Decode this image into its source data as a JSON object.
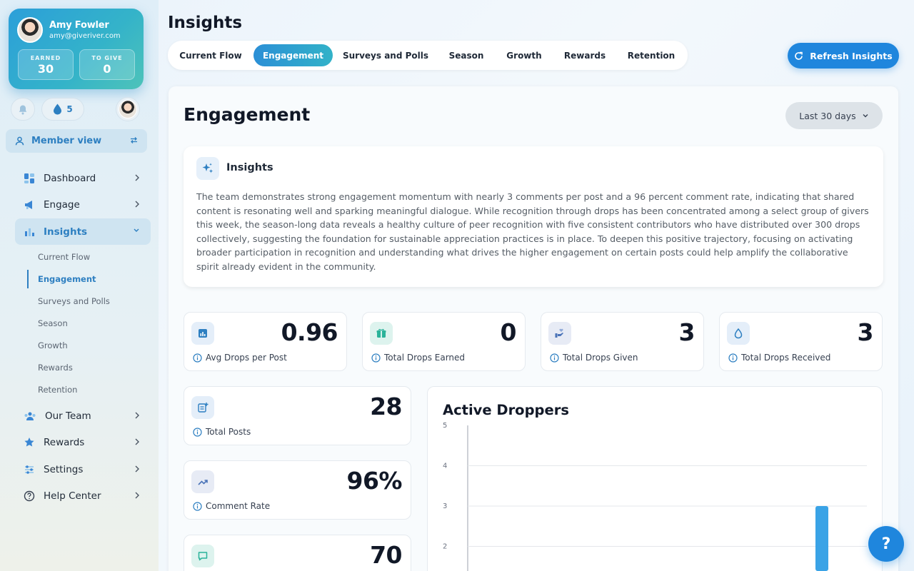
{
  "user": {
    "name": "Amy Fowler",
    "email": "amy@giveriver.com"
  },
  "stats": {
    "earned_label": "EARNED",
    "earned_value": "30",
    "give_label": "TO GIVE",
    "give_value": "0"
  },
  "drops_count": "5",
  "member_view_label": "Member view",
  "nav": {
    "dashboard": "Dashboard",
    "engage": "Engage",
    "insights": "Insights",
    "our_team": "Our Team",
    "rewards": "Rewards",
    "settings": "Settings",
    "help_center": "Help Center"
  },
  "subnav": [
    "Current Flow",
    "Engagement",
    "Surveys and Polls",
    "Season",
    "Growth",
    "Rewards",
    "Retention"
  ],
  "page_title": "Insights",
  "tabs": [
    "Current Flow",
    "Engagement",
    "Surveys and Polls",
    "Season",
    "Growth",
    "Rewards",
    "Retention"
  ],
  "refresh_label": "Refresh Insights",
  "panel_title": "Engagement",
  "range_label": "Last 30 days",
  "insights": {
    "title": "Insights",
    "text": "The team demonstrates strong engagement momentum with nearly 3 comments per post and a 96 percent comment rate, indicating that shared content is resonating well and sparking meaningful dialogue. While recognition through drops has been concentrated among a select group of givers this week, the season-long data reveals a healthy culture of peer recognition with five consistent contributors who have distributed over 300 drops collectively, suggesting the foundation for sustainable appreciation practices is in place. To deepen this positive trajectory, focusing on activating broader participation in recognition and understanding what drives the higher engagement on certain posts could help amplify the collaborative spirit already evident in the community."
  },
  "kpis": {
    "avg_drops": {
      "value": "0.96",
      "label": "Avg Drops per Post"
    },
    "drops_earned": {
      "value": "0",
      "label": "Total Drops Earned"
    },
    "drops_given": {
      "value": "3",
      "label": "Total Drops Given"
    },
    "drops_received": {
      "value": "3",
      "label": "Total Drops Received"
    },
    "total_posts": {
      "value": "28",
      "label": "Total Posts"
    },
    "comment_rate": {
      "value": "96%",
      "label": "Comment Rate"
    },
    "comments": {
      "value": "70"
    }
  },
  "colors": {
    "accent": "#1f86dd",
    "teal": "#32b2c8",
    "bar": "#3aa3e6"
  },
  "chart_data": {
    "type": "bar",
    "title": "Active Droppers",
    "ylim": [
      0,
      5
    ],
    "yticks": [
      "5",
      "4",
      "3",
      "2"
    ],
    "visible_values": [
      3
    ],
    "grid": true
  }
}
